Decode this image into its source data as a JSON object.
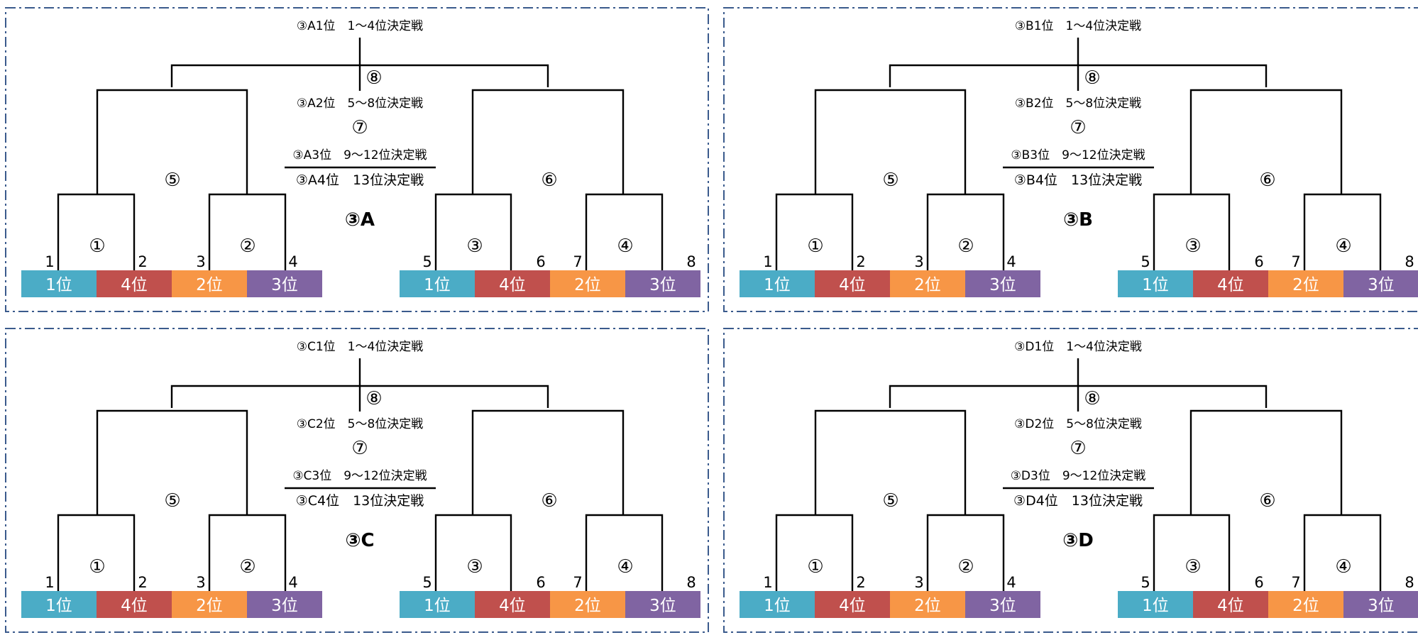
{
  "colors": {
    "line": "#000000",
    "frame": "#3a5a8c",
    "rank1": "#4bacc6",
    "rank4": "#c0504d",
    "rank2": "#f79646",
    "rank3": "#8064a2"
  },
  "ranks": [
    "1位",
    "4位",
    "2位",
    "3位"
  ],
  "seeds": [
    "1",
    "2",
    "3",
    "4",
    "5",
    "6",
    "7",
    "8"
  ],
  "match_numbers": [
    "①",
    "②",
    "③",
    "④",
    "⑤",
    "⑥",
    "⑦",
    "⑧"
  ],
  "panels": [
    {
      "group": "③A",
      "final_1_4": "③A1位　1～4位決定戦",
      "final_5_8": "③A2位　5～8位決定戦",
      "final_9_12": "③A3位　9～12位決定戦",
      "final_13": "③A4位　13位決定戦"
    },
    {
      "group": "③B",
      "final_1_4": "③B1位　1～4位決定戦",
      "final_5_8": "③B2位　5～8位決定戦",
      "final_9_12": "③B3位　9～12位決定戦",
      "final_13": "③B4位　13位決定戦"
    },
    {
      "group": "③C",
      "final_1_4": "③C1位　1～4位決定戦",
      "final_5_8": "③C2位　5～8位決定戦",
      "final_9_12": "③C3位　9～12位決定戦",
      "final_13": "③C4位　13位決定戦"
    },
    {
      "group": "③D",
      "final_1_4": "③D1位　1～4位決定戦",
      "final_5_8": "③D2位　5～8位決定戦",
      "final_9_12": "③D3位　9～12位決定戦",
      "final_13": "③D4位　13位決定戦"
    }
  ]
}
